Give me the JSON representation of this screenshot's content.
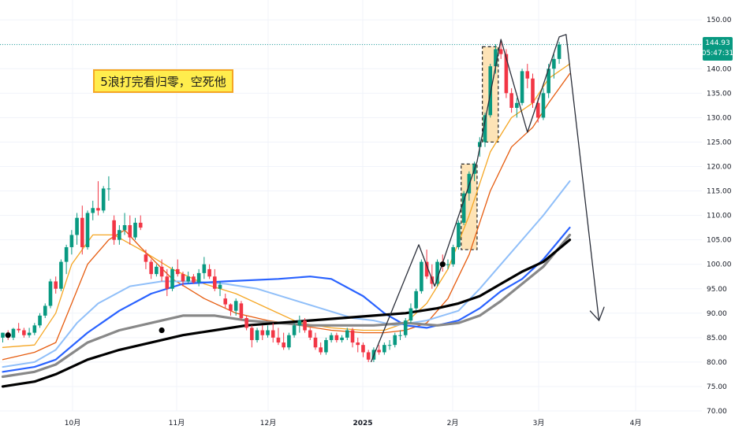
{
  "chart_data": {
    "type": "candlestick",
    "ylim": [
      69,
      152
    ],
    "y_ticks": [
      "150.00",
      "145.00",
      "140.00",
      "135.00",
      "130.00",
      "125.00",
      "120.00",
      "115.00",
      "110.00",
      "105.00",
      "100.00",
      "95.00",
      "90.00",
      "85.00",
      "80.00",
      "75.00",
      "70.00"
    ],
    "x_ticks": [
      {
        "label": "10月",
        "bold": false
      },
      {
        "label": "11月",
        "bold": false
      },
      {
        "label": "12月",
        "bold": false
      },
      {
        "label": "2025",
        "bold": true
      },
      {
        "label": "2月",
        "bold": false
      },
      {
        "label": "3月",
        "bold": false
      },
      {
        "label": "4月",
        "bold": false
      }
    ],
    "last_price": {
      "value": "144.93",
      "countdown": "05:47:31",
      "line_value": 144.93
    },
    "annotation": "5浪打完看归零，空死他",
    "colors": {
      "up": "#089981",
      "down": "#f23645",
      "ma_orange_fast": "#f5a623",
      "ma_orange_slow": "#e65c0f",
      "ma_light_blue": "#90bff9",
      "ma_blue": "#2962ff",
      "ma_gray": "#888888",
      "ma_black": "#000000",
      "highlight": "#fde3b6"
    },
    "candles": [
      [
        0,
        85,
        86,
        84,
        86
      ],
      [
        1,
        86,
        86.5,
        84.5,
        85
      ],
      [
        2,
        85,
        87,
        84.5,
        86.8
      ],
      [
        3,
        86.8,
        88,
        86,
        86.5
      ],
      [
        4,
        86.5,
        87,
        85,
        85.5
      ],
      [
        5,
        85.5,
        87,
        85,
        86
      ],
      [
        6,
        86,
        88,
        85.5,
        87.5
      ],
      [
        7,
        87.5,
        90,
        87,
        89.5
      ],
      [
        8,
        89.5,
        92,
        89,
        91.5
      ],
      [
        9,
        91.5,
        97,
        91,
        96.5
      ],
      [
        10,
        96.5,
        97.5,
        94,
        95
      ],
      [
        11,
        95,
        101,
        94.5,
        100.5
      ],
      [
        12,
        100.5,
        104,
        98,
        103.5
      ],
      [
        13,
        103.5,
        107,
        102,
        106
      ],
      [
        14,
        106,
        110.5,
        104,
        109.5
      ],
      [
        15,
        109.5,
        112,
        102,
        103.5
      ],
      [
        16,
        103.5,
        111,
        103,
        110.5
      ],
      [
        17,
        110.5,
        113,
        109,
        111.5
      ],
      [
        18,
        111.5,
        117,
        110,
        111
      ],
      [
        19,
        111,
        116,
        110.5,
        115.5
      ],
      [
        20,
        115.5,
        118,
        113,
        115.5
      ],
      [
        21,
        109,
        110,
        104,
        105
      ],
      [
        22,
        105,
        108,
        104,
        107
      ],
      [
        23,
        107,
        110.5,
        106,
        108
      ],
      [
        24,
        108,
        110,
        104,
        105.5
      ],
      [
        25,
        105.5,
        109.5,
        105,
        108.5
      ],
      [
        26,
        108.5,
        110,
        107,
        107.5
      ],
      [
        27,
        102,
        103,
        99,
        100.5
      ],
      [
        28,
        100.5,
        101,
        97,
        98
      ],
      [
        29,
        98,
        100,
        97.5,
        99.5
      ],
      [
        30,
        99.5,
        101,
        96.5,
        97.5
      ],
      [
        31,
        97.5,
        99,
        93.5,
        95
      ],
      [
        32,
        95,
        99.5,
        94.5,
        99
      ],
      [
        33,
        99,
        101,
        97.5,
        98
      ],
      [
        34,
        98,
        98.5,
        95.5,
        96.5
      ],
      [
        35,
        96.5,
        98.5,
        96,
        97.5
      ],
      [
        36,
        97.5,
        98,
        96,
        96.3
      ],
      [
        37,
        96.3,
        99,
        95.5,
        98.2
      ],
      [
        38,
        98.2,
        101.5,
        97,
        100
      ],
      [
        39,
        99,
        100,
        97,
        97.5
      ],
      [
        40,
        97.5,
        99,
        94.5,
        95
      ],
      [
        41,
        95,
        96.5,
        93.5,
        95.8
      ],
      [
        42,
        93,
        94,
        91,
        91.8
      ],
      [
        43,
        91.8,
        92,
        89.5,
        90.5
      ],
      [
        44,
        90.5,
        93,
        89.5,
        92.5
      ],
      [
        45,
        92,
        92.5,
        88.5,
        89
      ],
      [
        46,
        89,
        89.5,
        86.5,
        87
      ],
      [
        47,
        87,
        87.5,
        83,
        84.5
      ],
      [
        48,
        84.5,
        87,
        84,
        86.5
      ],
      [
        49,
        86.5,
        87.5,
        84.5,
        85.5
      ],
      [
        50,
        85.5,
        87.5,
        85,
        86.5
      ],
      [
        51,
        86.5,
        88,
        84,
        85
      ],
      [
        52,
        85,
        87,
        83.5,
        84
      ],
      [
        53,
        84,
        86,
        82.5,
        83
      ],
      [
        54,
        83,
        86,
        82.5,
        85.5
      ],
      [
        55,
        85.5,
        88,
        85,
        87.5
      ],
      [
        56,
        87.5,
        89.5,
        86,
        88.5
      ],
      [
        57,
        88.5,
        89,
        86,
        86.5
      ],
      [
        58,
        86.5,
        87,
        84.5,
        85
      ],
      [
        59,
        85,
        86,
        82.5,
        83
      ],
      [
        60,
        83,
        84,
        81.5,
        82
      ],
      [
        61,
        82,
        85,
        81.5,
        84.5
      ],
      [
        62,
        84.5,
        86,
        84,
        85.5
      ],
      [
        63,
        85.5,
        86,
        84,
        84.5
      ],
      [
        64,
        84.5,
        85.5,
        84,
        85
      ],
      [
        65,
        85,
        87,
        84.5,
        86.5
      ],
      [
        66,
        86.5,
        87,
        83,
        84
      ],
      [
        67,
        84,
        85,
        82,
        83.5
      ],
      [
        68,
        83.5,
        84,
        81,
        82
      ],
      [
        69,
        82,
        82.5,
        80,
        80.5
      ],
      [
        70,
        80.5,
        83,
        80,
        82.5
      ],
      [
        71,
        82.5,
        83.5,
        81.5,
        82
      ],
      [
        72,
        82,
        84,
        81.5,
        83.5
      ],
      [
        73,
        83.5,
        84.5,
        82.5,
        83.5
      ],
      [
        74,
        83.5,
        86,
        83,
        85.5
      ],
      [
        75,
        85.5,
        86.5,
        84.5,
        85.5
      ],
      [
        76,
        85.5,
        89,
        85,
        88.5
      ],
      [
        77,
        88.5,
        92,
        88,
        91
      ],
      [
        78,
        91,
        95,
        90.5,
        94.5
      ],
      [
        79,
        94.5,
        101,
        94,
        100.5
      ],
      [
        80,
        100.5,
        103,
        97,
        97.5
      ],
      [
        81,
        97.5,
        100,
        95,
        96
      ],
      [
        82,
        96,
        101,
        95.5,
        100.5
      ],
      [
        83,
        100.5,
        102,
        98.5,
        100
      ],
      [
        84,
        100,
        101,
        99,
        100
      ],
      [
        85,
        100,
        104,
        99.5,
        103.5
      ],
      [
        86,
        103.5,
        109,
        103,
        108.5
      ],
      [
        87,
        108.5,
        115,
        108,
        114.5
      ],
      [
        88,
        114.5,
        119,
        113,
        118.5
      ],
      [
        89,
        118.5,
        121,
        117,
        120.5
      ],
      [
        90,
        124,
        126,
        122,
        125
      ],
      [
        91,
        125,
        131,
        124,
        130.5
      ],
      [
        92,
        130.5,
        141,
        130,
        140.5
      ],
      [
        93,
        140.5,
        145,
        139,
        144
      ],
      [
        94,
        144,
        146,
        142,
        143
      ],
      [
        95,
        143,
        144,
        134,
        135
      ],
      [
        96,
        135,
        136,
        131,
        132
      ],
      [
        97,
        132,
        134,
        130,
        133
      ],
      [
        98,
        133,
        140,
        132.5,
        139.5
      ],
      [
        99,
        139.5,
        141,
        136,
        138
      ],
      [
        100,
        138,
        139,
        132,
        133
      ],
      [
        101,
        133,
        134,
        129,
        130
      ],
      [
        102,
        130,
        136,
        129.5,
        135
      ],
      [
        103,
        135,
        141,
        134,
        140
      ],
      [
        104,
        140,
        143,
        138,
        142
      ],
      [
        105,
        142,
        145.5,
        141,
        144.93
      ]
    ],
    "moving_averages": [
      {
        "key": "ma_orange_fast",
        "width": 1.3,
        "points": [
          [
            0,
            83
          ],
          [
            6,
            83.5
          ],
          [
            10,
            90
          ],
          [
            13,
            100
          ],
          [
            17,
            106
          ],
          [
            21,
            106
          ],
          [
            26,
            103
          ],
          [
            32,
            99
          ],
          [
            38,
            96
          ],
          [
            44,
            94
          ],
          [
            50,
            91
          ],
          [
            56,
            88
          ],
          [
            62,
            87
          ],
          [
            68,
            86.5
          ],
          [
            72,
            86.5
          ],
          [
            76,
            88
          ],
          [
            80,
            92
          ],
          [
            84,
            99
          ],
          [
            88,
            110
          ],
          [
            92,
            123
          ],
          [
            96,
            130
          ],
          [
            100,
            133
          ],
          [
            103,
            138
          ],
          [
            107,
            141
          ]
        ]
      },
      {
        "key": "ma_orange_slow",
        "width": 1.3,
        "points": [
          [
            0,
            80.5
          ],
          [
            6,
            82
          ],
          [
            10,
            84
          ],
          [
            13,
            92
          ],
          [
            16,
            100
          ],
          [
            20,
            105
          ],
          [
            23,
            107
          ],
          [
            26,
            103.5
          ],
          [
            32,
            97
          ],
          [
            38,
            93
          ],
          [
            44,
            90
          ],
          [
            50,
            88.5
          ],
          [
            56,
            87.5
          ],
          [
            62,
            86.5
          ],
          [
            68,
            86
          ],
          [
            72,
            86
          ],
          [
            76,
            86.5
          ],
          [
            80,
            88
          ],
          [
            84,
            93
          ],
          [
            88,
            102
          ],
          [
            92,
            115
          ],
          [
            96,
            124
          ],
          [
            100,
            128
          ],
          [
            103,
            133
          ],
          [
            107,
            139
          ]
        ]
      },
      {
        "key": "ma_light_blue",
        "width": 2,
        "points": [
          [
            0,
            79
          ],
          [
            6,
            80
          ],
          [
            10,
            82.5
          ],
          [
            14,
            88
          ],
          [
            18,
            92
          ],
          [
            24,
            95.5
          ],
          [
            30,
            96.5
          ],
          [
            36,
            96.5
          ],
          [
            42,
            96
          ],
          [
            48,
            95
          ],
          [
            54,
            93
          ],
          [
            60,
            91
          ],
          [
            66,
            89
          ],
          [
            70,
            88.5
          ],
          [
            74,
            87.5
          ],
          [
            80,
            88.5
          ],
          [
            86,
            90.5
          ],
          [
            90,
            95
          ],
          [
            94,
            100
          ],
          [
            98,
            105
          ],
          [
            102,
            110
          ],
          [
            107,
            117
          ]
        ]
      },
      {
        "key": "ma_blue",
        "width": 2.2,
        "points": [
          [
            0,
            78
          ],
          [
            6,
            79
          ],
          [
            10,
            80.5
          ],
          [
            16,
            86
          ],
          [
            22,
            90.5
          ],
          [
            28,
            94
          ],
          [
            34,
            96
          ],
          [
            42,
            96.5
          ],
          [
            52,
            97
          ],
          [
            58,
            97.5
          ],
          [
            62,
            97
          ],
          [
            68,
            93.5
          ],
          [
            72,
            90
          ],
          [
            76,
            87.5
          ],
          [
            80,
            87
          ],
          [
            86,
            88.5
          ],
          [
            90,
            91
          ],
          [
            94,
            94.5
          ],
          [
            98,
            97
          ],
          [
            102,
            101
          ],
          [
            107,
            107.5
          ]
        ]
      },
      {
        "key": "ma_gray",
        "width": 3.2,
        "points": [
          [
            0,
            77
          ],
          [
            6,
            78
          ],
          [
            10,
            79.5
          ],
          [
            16,
            84
          ],
          [
            22,
            86.5
          ],
          [
            28,
            88
          ],
          [
            34,
            89.5
          ],
          [
            40,
            89.5
          ],
          [
            46,
            88.5
          ],
          [
            52,
            88
          ],
          [
            58,
            87.5
          ],
          [
            64,
            87.5
          ],
          [
            70,
            87.5
          ],
          [
            76,
            88
          ],
          [
            82,
            87.5
          ],
          [
            86,
            88
          ],
          [
            90,
            89.5
          ],
          [
            94,
            92.5
          ],
          [
            98,
            96
          ],
          [
            102,
            99.5
          ],
          [
            107,
            106
          ]
        ]
      },
      {
        "key": "ma_black",
        "width": 3.2,
        "points": [
          [
            0,
            75
          ],
          [
            6,
            76
          ],
          [
            10,
            77.5
          ],
          [
            16,
            80.5
          ],
          [
            22,
            82.5
          ],
          [
            28,
            84
          ],
          [
            34,
            85.5
          ],
          [
            40,
            86.5
          ],
          [
            46,
            87.5
          ],
          [
            52,
            88
          ],
          [
            58,
            88.5
          ],
          [
            64,
            89
          ],
          [
            70,
            89.5
          ],
          [
            76,
            90
          ],
          [
            82,
            91
          ],
          [
            86,
            92
          ],
          [
            90,
            93.5
          ],
          [
            94,
            96
          ],
          [
            98,
            98.5
          ],
          [
            102,
            100.5
          ],
          [
            107,
            105
          ]
        ]
      }
    ],
    "highlight_boxes": [
      {
        "x0": 86.5,
        "x1": 89.5,
        "y0": 103,
        "y1": 120.5
      },
      {
        "x0": 90.5,
        "x1": 93.5,
        "y0": 125,
        "y1": 144.5
      }
    ],
    "wave_path": [
      [
        69.5,
        80
      ],
      [
        78.5,
        104
      ],
      [
        81.5,
        95.5
      ],
      [
        89.5,
        121
      ],
      [
        94,
        146
      ],
      [
        99,
        127
      ],
      [
        105,
        146.5
      ],
      [
        106.3,
        147
      ],
      [
        112.5,
        88.5
      ]
    ],
    "arrow_head": [
      [
        110.8,
        90.5
      ],
      [
        112.5,
        88.5
      ],
      [
        113.5,
        91.3
      ]
    ],
    "markers": [
      [
        1,
        85.5
      ],
      [
        30,
        86.5
      ],
      [
        83,
        100
      ]
    ]
  }
}
